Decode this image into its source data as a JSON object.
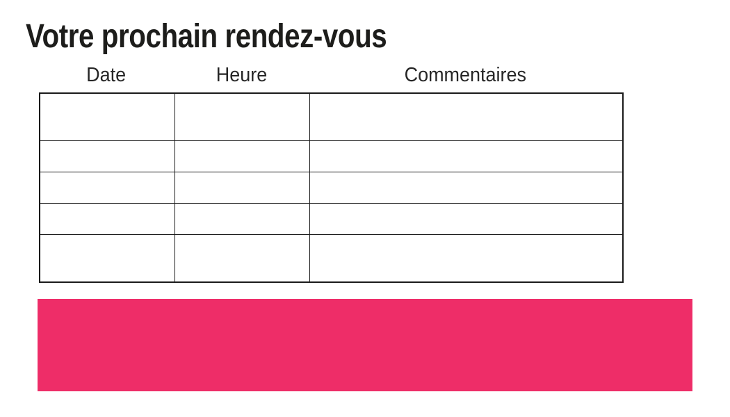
{
  "page": {
    "title": "Votre prochain rendez-vous"
  },
  "table": {
    "columns": [
      {
        "label": "Date"
      },
      {
        "label": "Heure"
      },
      {
        "label": "Commentaires"
      }
    ],
    "row_count": 5,
    "rows": [
      [
        "",
        "",
        ""
      ],
      [
        "",
        "",
        ""
      ],
      [
        "",
        "",
        ""
      ],
      [
        "",
        "",
        ""
      ],
      [
        "",
        "",
        ""
      ]
    ]
  },
  "banner": {
    "text": ""
  },
  "colors": {
    "accent": "#EE2D68",
    "text": "#1D1D1B",
    "table_border": "#1A1A1A",
    "background": "#FFFFFF"
  }
}
